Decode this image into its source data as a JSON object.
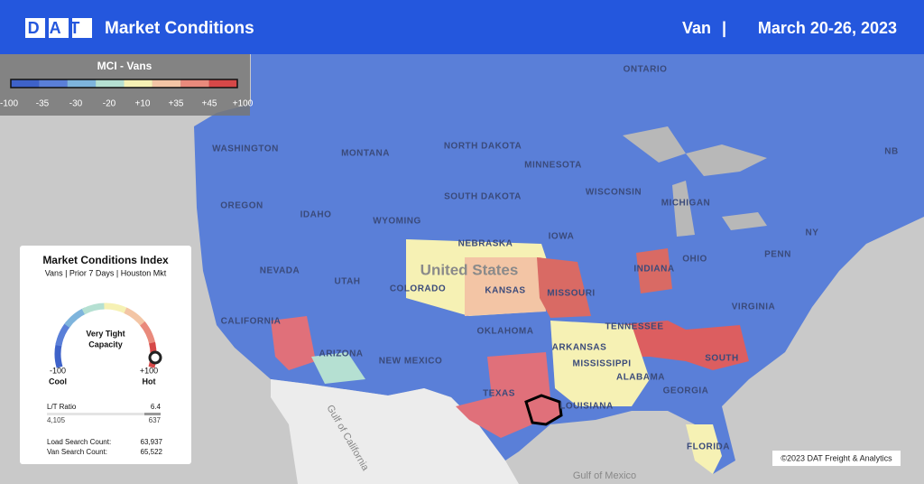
{
  "header": {
    "logo": "DAT",
    "title": "Market Conditions",
    "mode": "Van",
    "separator": "|",
    "date": "March 20-26, 2023"
  },
  "legend": {
    "title": "MCI - Vans",
    "colors": [
      "#3e62c9",
      "#5a7fd8",
      "#7eb4dc",
      "#b5e0d2",
      "#f6f1b4",
      "#f3c5a5",
      "#e98a7c",
      "#d64848"
    ],
    "labels": [
      "-100",
      "-35",
      "-30",
      "-20",
      "+10",
      "+35",
      "+45",
      "+100"
    ]
  },
  "map_labels": [
    "ONTARIO",
    "WASHINGTON",
    "MONTANA",
    "NORTH DAKOTA",
    "MINNESOTA",
    "WISCONSIN",
    "MICHIGAN",
    "SOUTH DAKOTA",
    "OREGON",
    "IDAHO",
    "WYOMING",
    "NEBRASKA",
    "IOWA",
    "NEVADA",
    "UTAH",
    "COLORADO",
    "KANSAS",
    "MISSOURI",
    "INDIANA",
    "OHIO",
    "PENN",
    "VIRGINIA",
    "CALIFORNIA",
    "ARIZONA",
    "NEW MEXICO",
    "OKLAHOMA",
    "ARKANSAS",
    "TENNESSEE",
    "MISSISSIPPI",
    "ALABAMA",
    "GEORGIA",
    "SOUTH",
    "TEXAS",
    "LOUISIANA",
    "FLORIDA",
    "NB",
    "NY",
    "United States",
    "Gulf of California",
    "Gulf of Mexico"
  ],
  "card": {
    "title": "Market Conditions Index",
    "subtitle": "Vans | Prior 7 Days | Houston Mkt",
    "status_line1": "Very Tight",
    "status_line2": "Capacity",
    "min": "-100",
    "min_word": "Cool",
    "max": "+100",
    "max_word": "Hot",
    "ratio_label": "L/T Ratio",
    "ratio_value": "6.4",
    "loads": "4,105",
    "trucks": "637",
    "load_search_label": "Load Search Count:",
    "load_search_value": "63,937",
    "van_search_label": "Van Search Count:",
    "van_search_value": "65,522"
  },
  "copyright": "©2023 DAT Freight & Analytics"
}
